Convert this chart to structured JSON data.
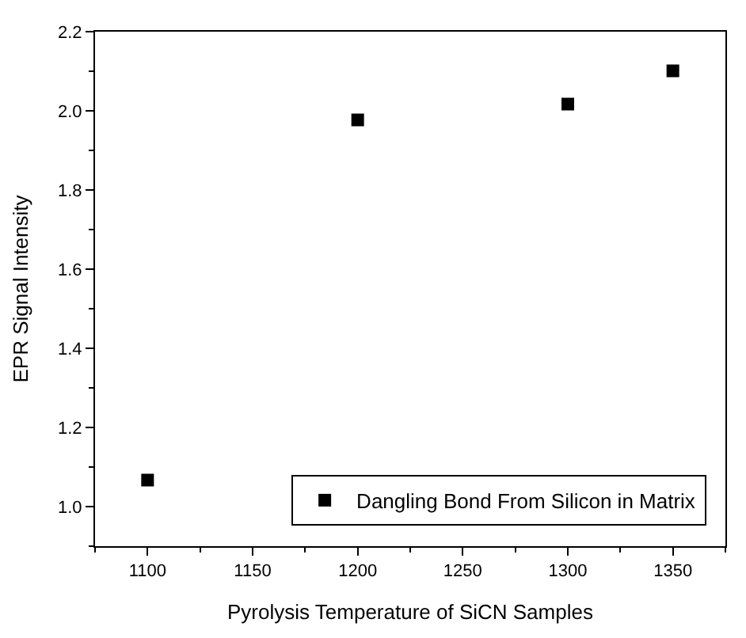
{
  "chart_data": {
    "type": "scatter",
    "xlabel": "Pyrolysis Temperature of SiCN Samples",
    "ylabel": "EPR Signal Intensity",
    "x": [
      1100,
      1200,
      1300,
      1350
    ],
    "series": [
      {
        "name": "Dangling Bond From Silicon in Matrix",
        "color": "#000000",
        "values": [
          1.067,
          1.977,
          2.017,
          2.101
        ]
      }
    ],
    "xlim": [
      1075,
      1375
    ],
    "xticks": [
      1100,
      1150,
      1200,
      1250,
      1300,
      1350
    ],
    "ylim": [
      0.9,
      2.2
    ],
    "yticks": [
      {
        "value": 1,
        "label": "1.0"
      },
      1.2,
      1.4,
      1.6,
      1.8,
      {
        "value": 2,
        "label": "2.0"
      },
      2.2
    ],
    "marker": "square",
    "legend": "bottom right"
  }
}
